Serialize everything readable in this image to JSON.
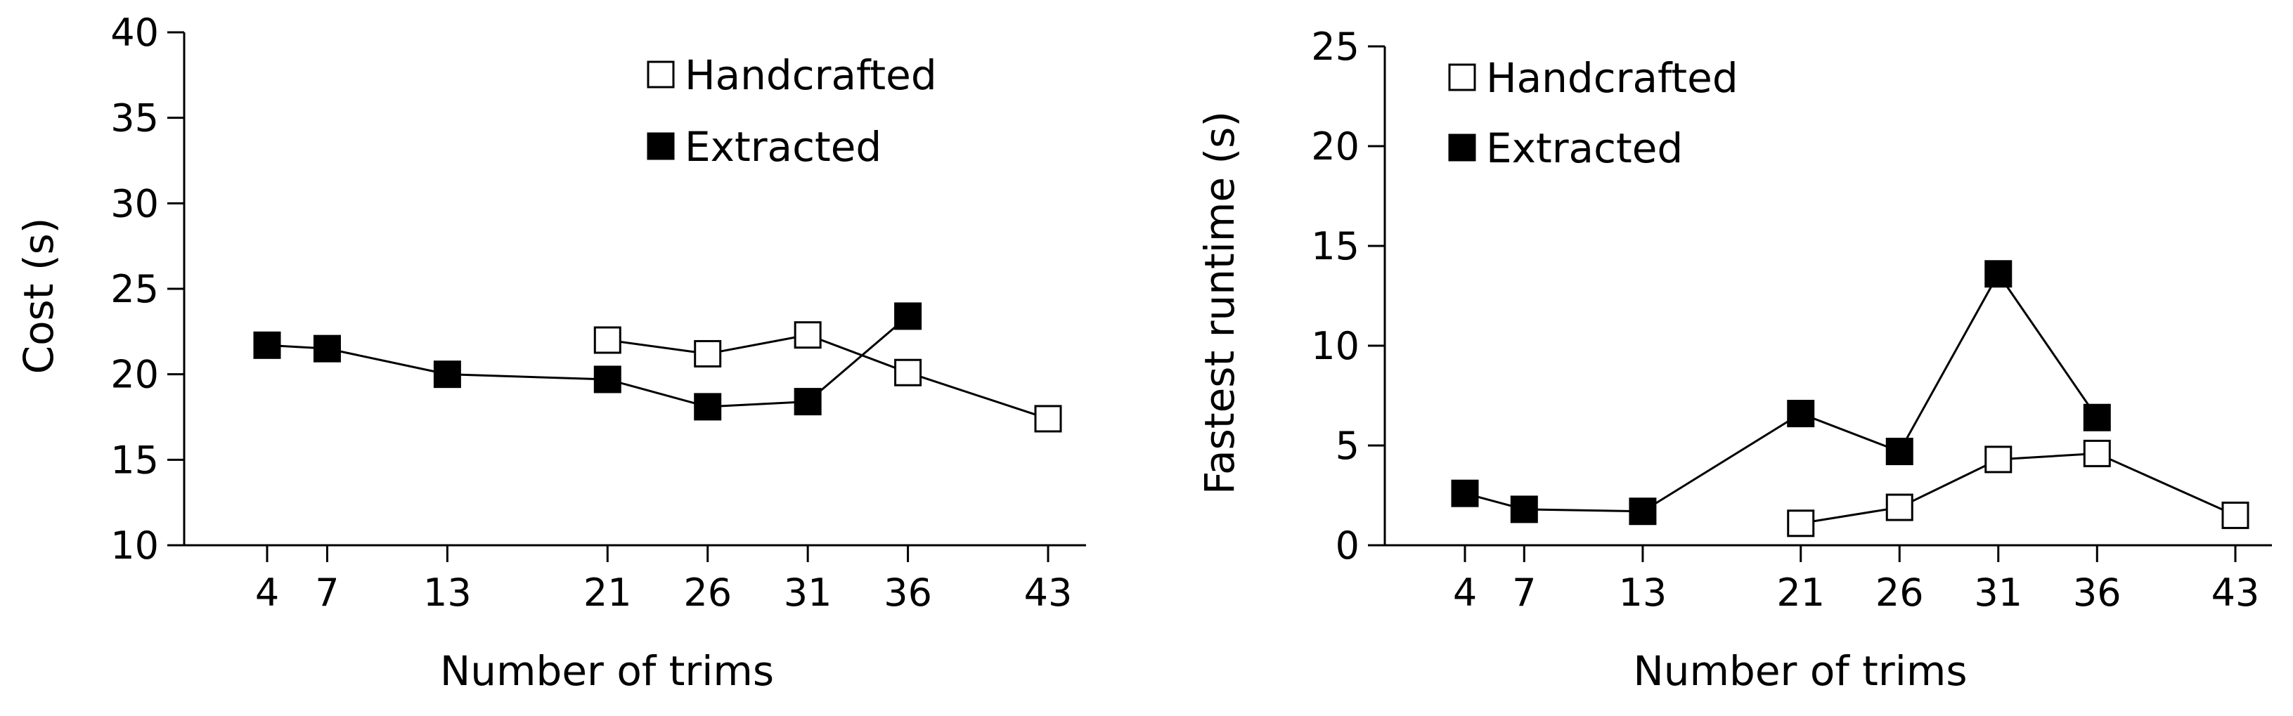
{
  "chart_data": [
    {
      "type": "line",
      "title": "",
      "xlabel": "Number of trims",
      "ylabel": "Cost (s)",
      "x_ticks": [
        4,
        7,
        13,
        21,
        26,
        31,
        36,
        43
      ],
      "xlim": [
        0,
        45
      ],
      "ylim": [
        10,
        40
      ],
      "y_ticks": [
        10,
        15,
        20,
        25,
        30,
        35,
        40
      ],
      "grid": false,
      "legend_position": "top-right",
      "series": [
        {
          "name": "Handcrafted",
          "marker": "open-square",
          "color": "#ffffff",
          "x": [
            21,
            26,
            31,
            36,
            43
          ],
          "y": [
            22.0,
            21.2,
            22.3,
            20.1,
            17.4
          ]
        },
        {
          "name": "Extracted",
          "marker": "filled-square",
          "color": "#000000",
          "x": [
            4,
            7,
            13,
            21,
            26,
            31,
            36
          ],
          "y": [
            21.7,
            21.5,
            20.0,
            19.7,
            18.1,
            18.4,
            23.4
          ]
        }
      ]
    },
    {
      "type": "line",
      "title": "",
      "xlabel": "Number of trims",
      "ylabel": "Fastest runtime (s)",
      "x_ticks": [
        4,
        7,
        13,
        21,
        26,
        31,
        36,
        43
      ],
      "xlim": [
        0,
        45
      ],
      "ylim": [
        0,
        25
      ],
      "y_ticks": [
        0,
        5,
        10,
        15,
        20,
        25
      ],
      "grid": false,
      "legend_position": "top-left",
      "series": [
        {
          "name": "Handcrafted",
          "marker": "open-square",
          "color": "#ffffff",
          "x": [
            21,
            26,
            31,
            36,
            43
          ],
          "y": [
            1.1,
            1.9,
            4.3,
            4.6,
            1.5
          ]
        },
        {
          "name": "Extracted",
          "marker": "filled-square",
          "color": "#000000",
          "x": [
            4,
            7,
            13,
            21,
            26,
            31,
            36
          ],
          "y": [
            2.6,
            1.8,
            1.7,
            6.6,
            4.7,
            13.6,
            6.4
          ]
        }
      ]
    }
  ]
}
